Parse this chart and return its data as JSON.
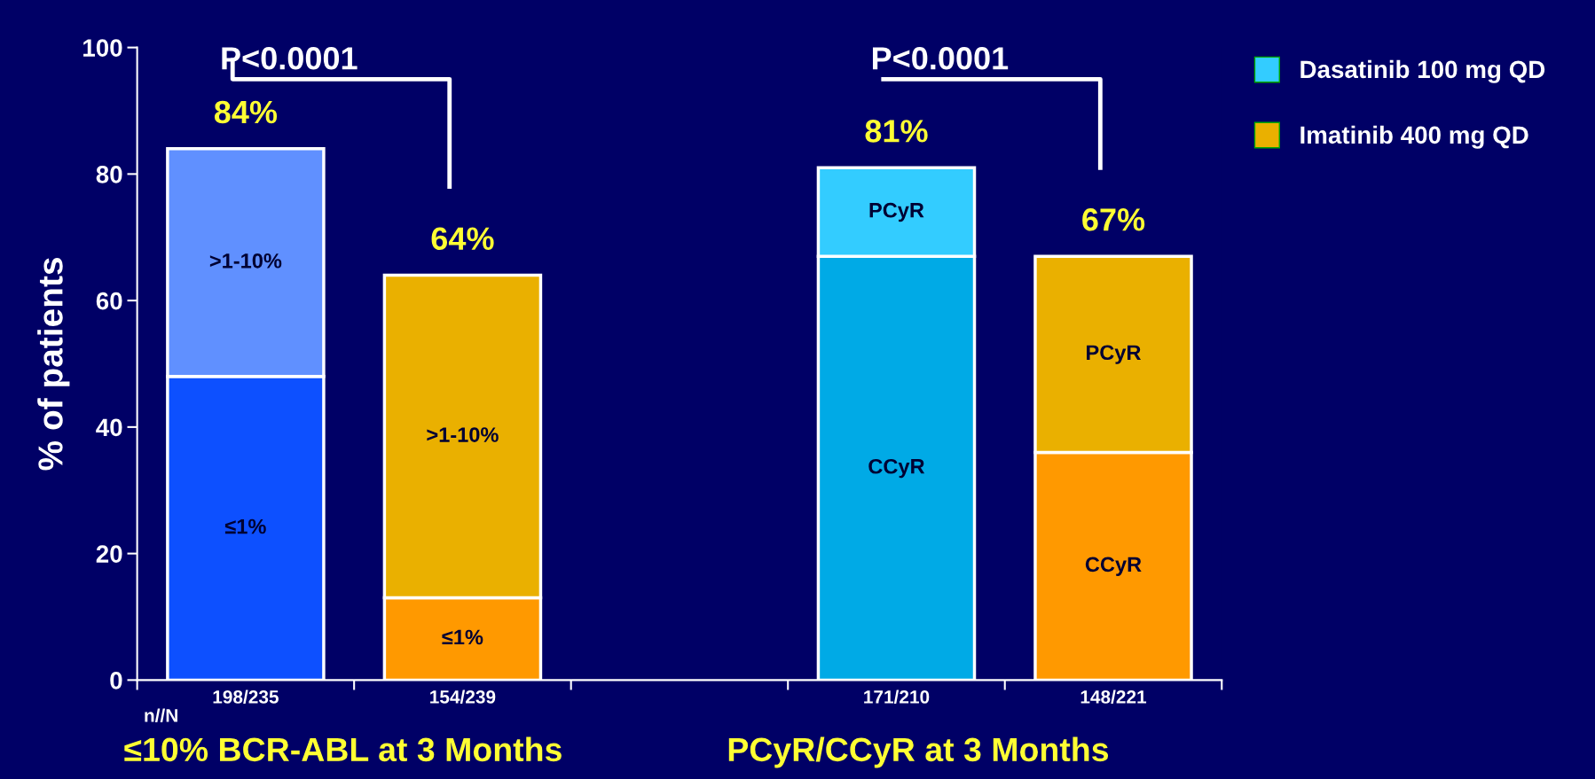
{
  "chart_data": {
    "type": "bar",
    "stacked": true,
    "ylabel": "% of patients",
    "categories": [
      "198/235",
      "154/239",
      null,
      "171/210",
      "148/221"
    ],
    "series": [
      {
        "name": "Dasatinib 100 mg QD",
        "color": "#33ccff",
        "colors": [
          "#0d50ff",
          null,
          null,
          "#00aae6",
          null
        ],
        "values": [
          48,
          null,
          null,
          67,
          null
        ]
      },
      {
        "colors": [
          "#6090ff",
          null,
          null,
          "#33ccff",
          null
        ],
        "values": [
          36,
          null,
          null,
          14,
          null
        ]
      },
      {
        "name": "Imatinib 400 mg QD",
        "color": "#eab000",
        "colors": [
          null,
          "#ff9900",
          null,
          null,
          "#ff9900"
        ],
        "values": [
          null,
          13,
          null,
          null,
          36
        ]
      },
      {
        "colors": [
          null,
          "#eab000",
          null,
          null,
          "#eab000"
        ],
        "values": [
          null,
          51,
          null,
          null,
          31
        ]
      }
    ],
    "totals": [
      "84%",
      "64%",
      null,
      "81%",
      "67%"
    ],
    "ylim": [
      0,
      100
    ],
    "yticks": [
      0,
      20,
      40,
      60,
      80,
      100
    ],
    "legend": "top right",
    "grid": false,
    "annotations": [
      "n//N",
      "P<0.0001",
      "P<0.0001",
      "≤10% BCR-ABL at 3 Months",
      "PCyR/CCyR at 3 Months",
      "≤1%",
      "CCyR",
      ">1-10%",
      "PCyR",
      "≤1%",
      "CCyR",
      ">1-10%",
      "PCyR"
    ]
  }
}
